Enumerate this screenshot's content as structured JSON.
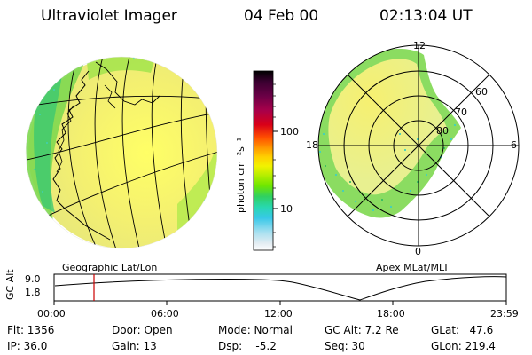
{
  "header": {
    "instrument": "Ultraviolet Imager",
    "date": "04 Feb 00",
    "time": "02:13:04 UT"
  },
  "left_panel": {
    "caption": "Geographic Lat/Lon"
  },
  "right_panel": {
    "caption": "Apex MLat/MLT",
    "mlt_labels": [
      "12",
      "18",
      "6",
      "0"
    ],
    "lat_labels": [
      "60",
      "70",
      "80"
    ]
  },
  "colorbar": {
    "unit_label": "photon cm⁻²s⁻¹",
    "ticks": [
      "100",
      "10"
    ],
    "colors": [
      "#000000",
      "#3a0030",
      "#6b0046",
      "#a8004a",
      "#d90018",
      "#ff4e00",
      "#ff9a00",
      "#ffd000",
      "#f2f200",
      "#b8ee00",
      "#6fe600",
      "#30d060",
      "#28d8b0",
      "#38c8e8",
      "#a8e0f0",
      "#e2ecf2",
      "#ffffff"
    ]
  },
  "timeline": {
    "y_axis_label": "GC Alt",
    "y_ticks": [
      "9.0",
      "1.8"
    ],
    "x_ticks": [
      "00:00",
      "06:00",
      "12:00",
      "18:00",
      "23:59"
    ],
    "current_marker": "02:13"
  },
  "info": {
    "flt": "Flt: 1356",
    "ip": "IP: 36.0",
    "door": "Door: Open",
    "gain": "Gain: 13",
    "mode": "Mode: Normal",
    "dsp": "Dsp:    -5.2",
    "gc_alt": "GC Alt: 7.2 Re",
    "seq": "Seq: 30",
    "glat": "GLat:   47.6",
    "glon": "GLon: 219.4"
  }
}
